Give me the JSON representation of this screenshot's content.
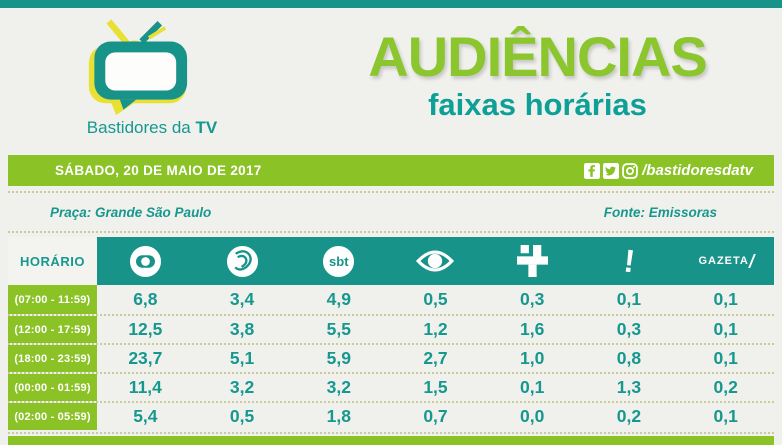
{
  "brand": {
    "name": "Bastidores da",
    "name_bold": "TV"
  },
  "header": {
    "title": "AUDIÊNCIAS",
    "subtitle": "faixas horárias"
  },
  "date_bar": {
    "date": "SÁBADO, 20 DE MAIO DE 2017",
    "social_handle": "/bastidoresdatv",
    "social_icons": [
      "facebook-icon",
      "twitter-icon",
      "instagram-icon"
    ]
  },
  "info_bar": {
    "left": "Praça: Grande São Paulo",
    "right": "Fonte: Emissoras"
  },
  "table": {
    "row_header": "HORÁRIO"
  },
  "colors": {
    "teal": "#18938A",
    "teal_text": "#17988E",
    "green": "#8BC226",
    "title_green": "#8CC62E",
    "subtitle_teal": "#0CA096",
    "background": "#F0F0ED"
  },
  "chart_data": {
    "type": "table",
    "title": "AUDIÊNCIAS faixas horárias",
    "date": "SÁBADO, 20 DE MAIO DE 2017",
    "market": "Grande São Paulo",
    "source": "Emissoras",
    "row_header": "HORÁRIO",
    "columns": [
      "Globo",
      "Record",
      "SBT",
      "Band",
      "Cultura",
      "RedeTV!",
      "Gazeta"
    ],
    "rows": [
      {
        "time": "(07:00 - 11:59)",
        "values": [
          "6,8",
          "3,4",
          "4,9",
          "0,5",
          "0,3",
          "0,1",
          "0,1"
        ]
      },
      {
        "time": "(12:00 - 17:59)",
        "values": [
          "12,5",
          "3,8",
          "5,5",
          "1,2",
          "1,6",
          "0,3",
          "0,1"
        ]
      },
      {
        "time": "(18:00 - 23:59)",
        "values": [
          "23,7",
          "5,1",
          "5,9",
          "2,7",
          "1,0",
          "0,8",
          "0,1"
        ]
      },
      {
        "time": "(00:00 - 01:59)",
        "values": [
          "11,4",
          "3,2",
          "3,2",
          "1,5",
          "0,1",
          "1,3",
          "0,2"
        ]
      },
      {
        "time": "(02:00 - 05:59)",
        "values": [
          "5,4",
          "0,5",
          "1,8",
          "0,7",
          "0,0",
          "0,2",
          "0,1"
        ]
      }
    ]
  }
}
